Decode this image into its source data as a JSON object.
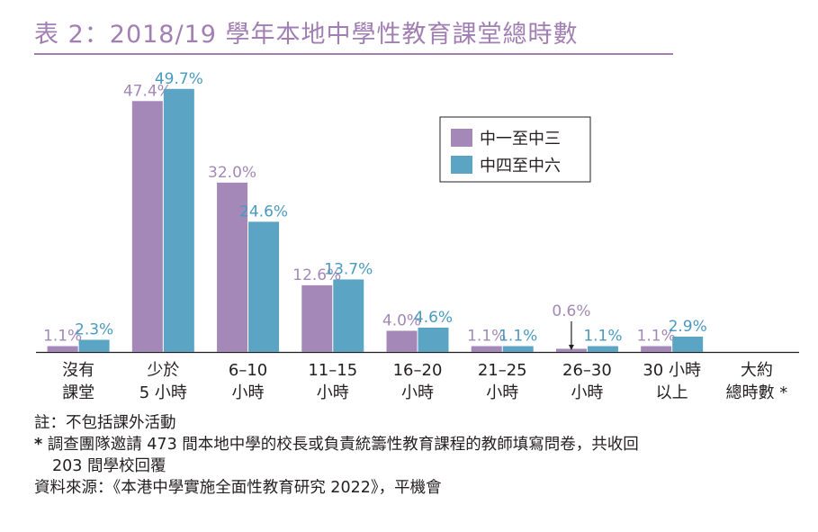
{
  "title": "表 2：2018/19 學年本地中學性教育課堂總時數",
  "chart_data": {
    "type": "bar",
    "categories": [
      [
        "沒有",
        "課堂"
      ],
      [
        "少於",
        "5 小時"
      ],
      [
        "6–10",
        "小時"
      ],
      [
        "11–15",
        "小時"
      ],
      [
        "16–20",
        "小時"
      ],
      [
        "21–25",
        "小時"
      ],
      [
        "26–30",
        "小時"
      ],
      [
        "30 小時",
        "以上"
      ],
      [
        "大約",
        "總時數 *"
      ]
    ],
    "series": [
      {
        "name": "中一至中三",
        "color": "#a388b8",
        "label_color": "#a388b8",
        "values": [
          1.1,
          47.4,
          32.0,
          12.6,
          4.0,
          1.1,
          0.6,
          1.1,
          null
        ],
        "labels": [
          "1.1%",
          "47.4%",
          "32.0%",
          "12.6%",
          "4.0%",
          "1.1%",
          "0.6%",
          "1.1%",
          ""
        ]
      },
      {
        "name": "中四至中六",
        "color": "#5ba4c3",
        "label_color": "#4a9ac0",
        "values": [
          2.3,
          49.7,
          24.6,
          13.7,
          4.6,
          1.1,
          1.1,
          2.9,
          null
        ],
        "labels": [
          "2.3%",
          "49.7%",
          "24.6%",
          "13.7%",
          "4.6%",
          "1.1%",
          "1.1%",
          "2.9%",
          ""
        ]
      }
    ],
    "ylim": [
      0,
      50
    ],
    "grid": false,
    "legend_position": "top-right"
  },
  "notes": {
    "note": "註：不包括課外活動",
    "star_mark": "*",
    "star_line1": "調查團隊邀請 473 間本地中學的校長或負責統籌性教育課程的教師填寫問卷，共收回",
    "star_line2": "203 間學校回覆",
    "source": "資料來源：《本港中學實施全面性教育研究 2022》，平機會"
  }
}
